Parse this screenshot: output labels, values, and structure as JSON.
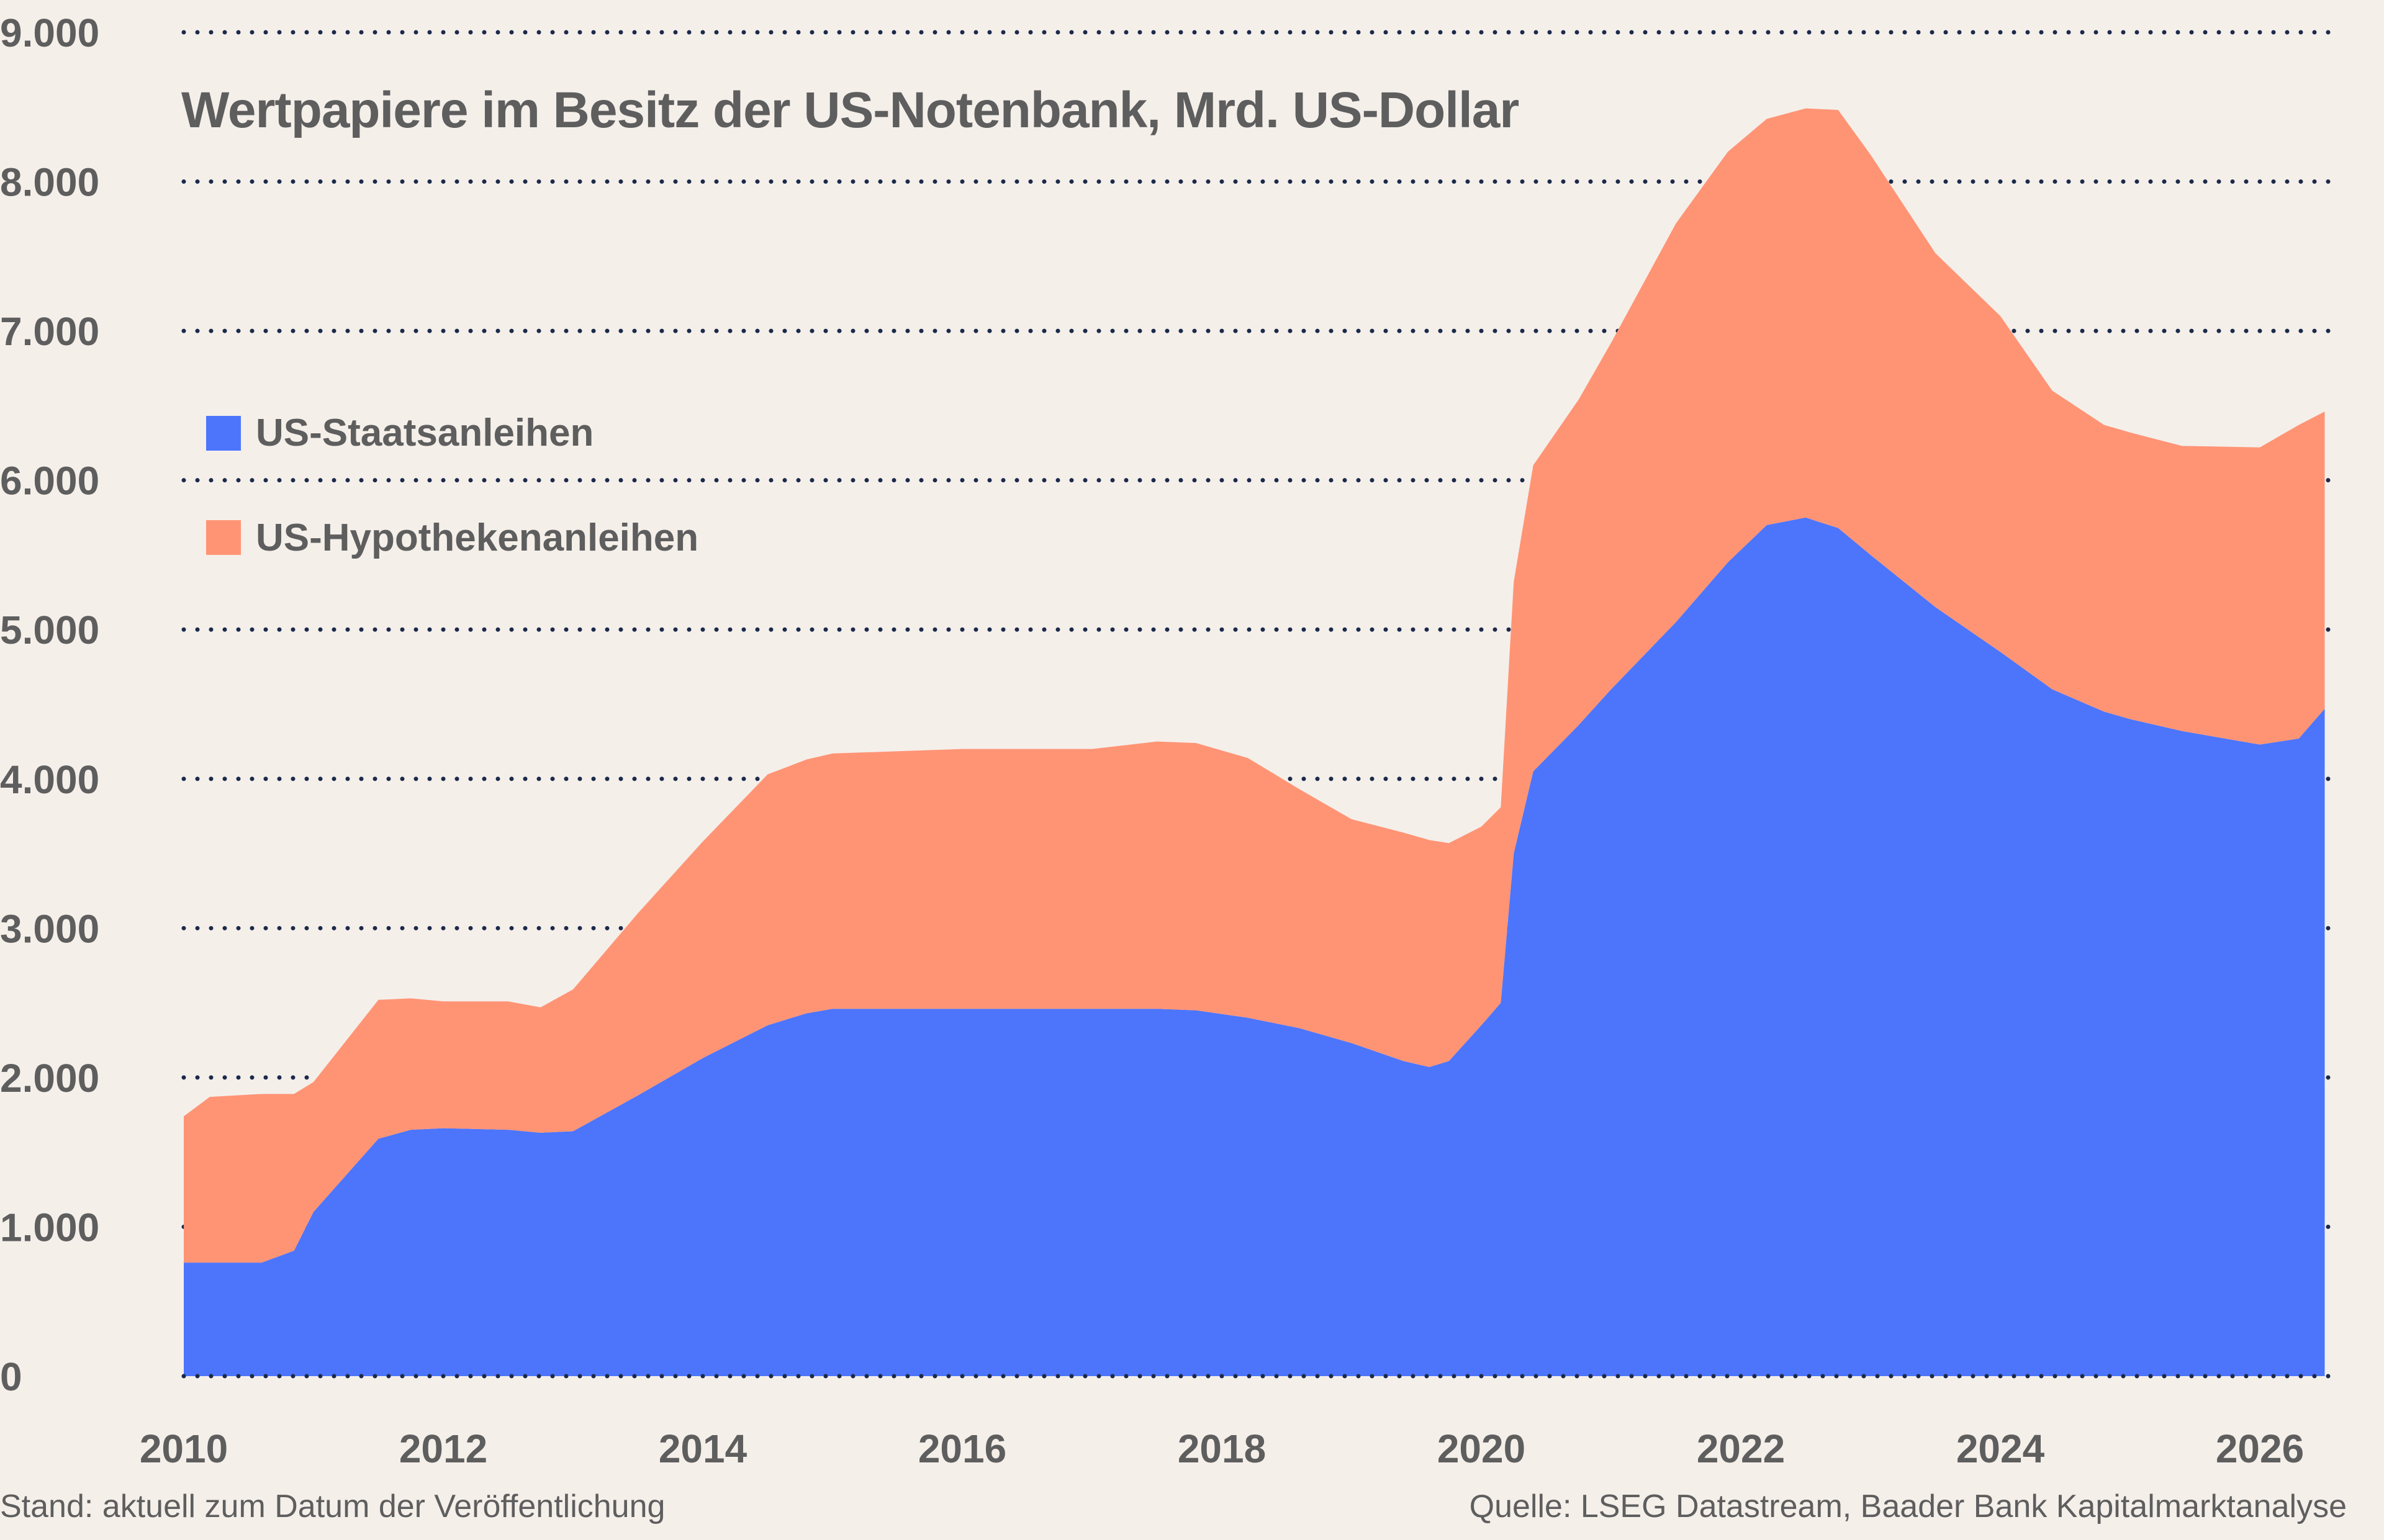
{
  "chart_data": {
    "type": "area",
    "stacked": true,
    "title": "Wertpapiere im Besitz der US-Notenbank, Mrd. US-Dollar",
    "xlabel": "",
    "ylabel": "",
    "xlim": [
      2010,
      2026.6
    ],
    "ylim": [
      0,
      9000
    ],
    "x_ticks": [
      2010,
      2012,
      2014,
      2016,
      2018,
      2020,
      2022,
      2024,
      2026
    ],
    "x_tick_labels": [
      "2010",
      "2012",
      "2014",
      "2016",
      "2018",
      "2020",
      "2022",
      "2024",
      "2026"
    ],
    "y_ticks": [
      0,
      1000,
      2000,
      3000,
      4000,
      5000,
      6000,
      7000,
      8000,
      9000
    ],
    "y_tick_labels": [
      "0",
      "1.000",
      "2.000",
      "3.000",
      "4.000",
      "5.000",
      "6.000",
      "7.000",
      "8.000",
      "9.000"
    ],
    "grid": "horizontal-dotted",
    "legend_position": "upper-left",
    "x": [
      2010.0,
      2010.2,
      2010.6,
      2010.85,
      2011.0,
      2011.5,
      2011.75,
      2012.0,
      2012.5,
      2012.75,
      2013.0,
      2013.5,
      2014.0,
      2014.5,
      2014.8,
      2015.0,
      2016.0,
      2017.0,
      2017.5,
      2017.8,
      2018.2,
      2018.6,
      2019.0,
      2019.4,
      2019.6,
      2019.75,
      2020.0,
      2020.15,
      2020.25,
      2020.4,
      2020.75,
      2021.0,
      2021.5,
      2021.9,
      2022.2,
      2022.5,
      2022.75,
      2023.0,
      2023.5,
      2024.0,
      2024.4,
      2024.8,
      2025.0,
      2025.4,
      2026.0,
      2026.3,
      2026.5
    ],
    "series": [
      {
        "name": "US-Staatsanleihen",
        "color": "#4c75fc",
        "values": [
          760,
          760,
          760,
          840,
          1100,
          1590,
          1650,
          1660,
          1650,
          1630,
          1640,
          1880,
          2130,
          2350,
          2430,
          2460,
          2460,
          2460,
          2460,
          2450,
          2400,
          2330,
          2230,
          2110,
          2070,
          2110,
          2350,
          2500,
          3500,
          4050,
          4360,
          4600,
          5050,
          5450,
          5700,
          5750,
          5680,
          5500,
          5150,
          4850,
          4600,
          4450,
          4400,
          4320,
          4230,
          4270,
          4470
        ]
      },
      {
        "name": "US-Hypothekenanleihen",
        "color": "#ff9475",
        "values": [
          980,
          1110,
          1130,
          1050,
          870,
          930,
          880,
          850,
          860,
          840,
          950,
          1220,
          1450,
          1680,
          1700,
          1710,
          1740,
          1740,
          1790,
          1790,
          1740,
          1600,
          1500,
          1530,
          1520,
          1460,
          1330,
          1310,
          1820,
          2050,
          2180,
          2320,
          2670,
          2750,
          2720,
          2740,
          2800,
          2680,
          2370,
          2250,
          2000,
          1920,
          1920,
          1910,
          1990,
          2100,
          1990
        ]
      }
    ],
    "colors": {
      "background": "#f5efea",
      "grid": "#1b2a4a",
      "text": "#5e5e5e"
    }
  },
  "legend": {
    "items": [
      {
        "label": "US-Staatsanleihen",
        "color": "#4c75fc"
      },
      {
        "label": "US-Hypothekenanleihen",
        "color": "#ff9475"
      }
    ]
  },
  "footer": {
    "left": "Stand: aktuell zum Datum der Veröffentlichung",
    "right": "Quelle: LSEG Datastream, Baader Bank Kapitalmarktanalyse"
  }
}
